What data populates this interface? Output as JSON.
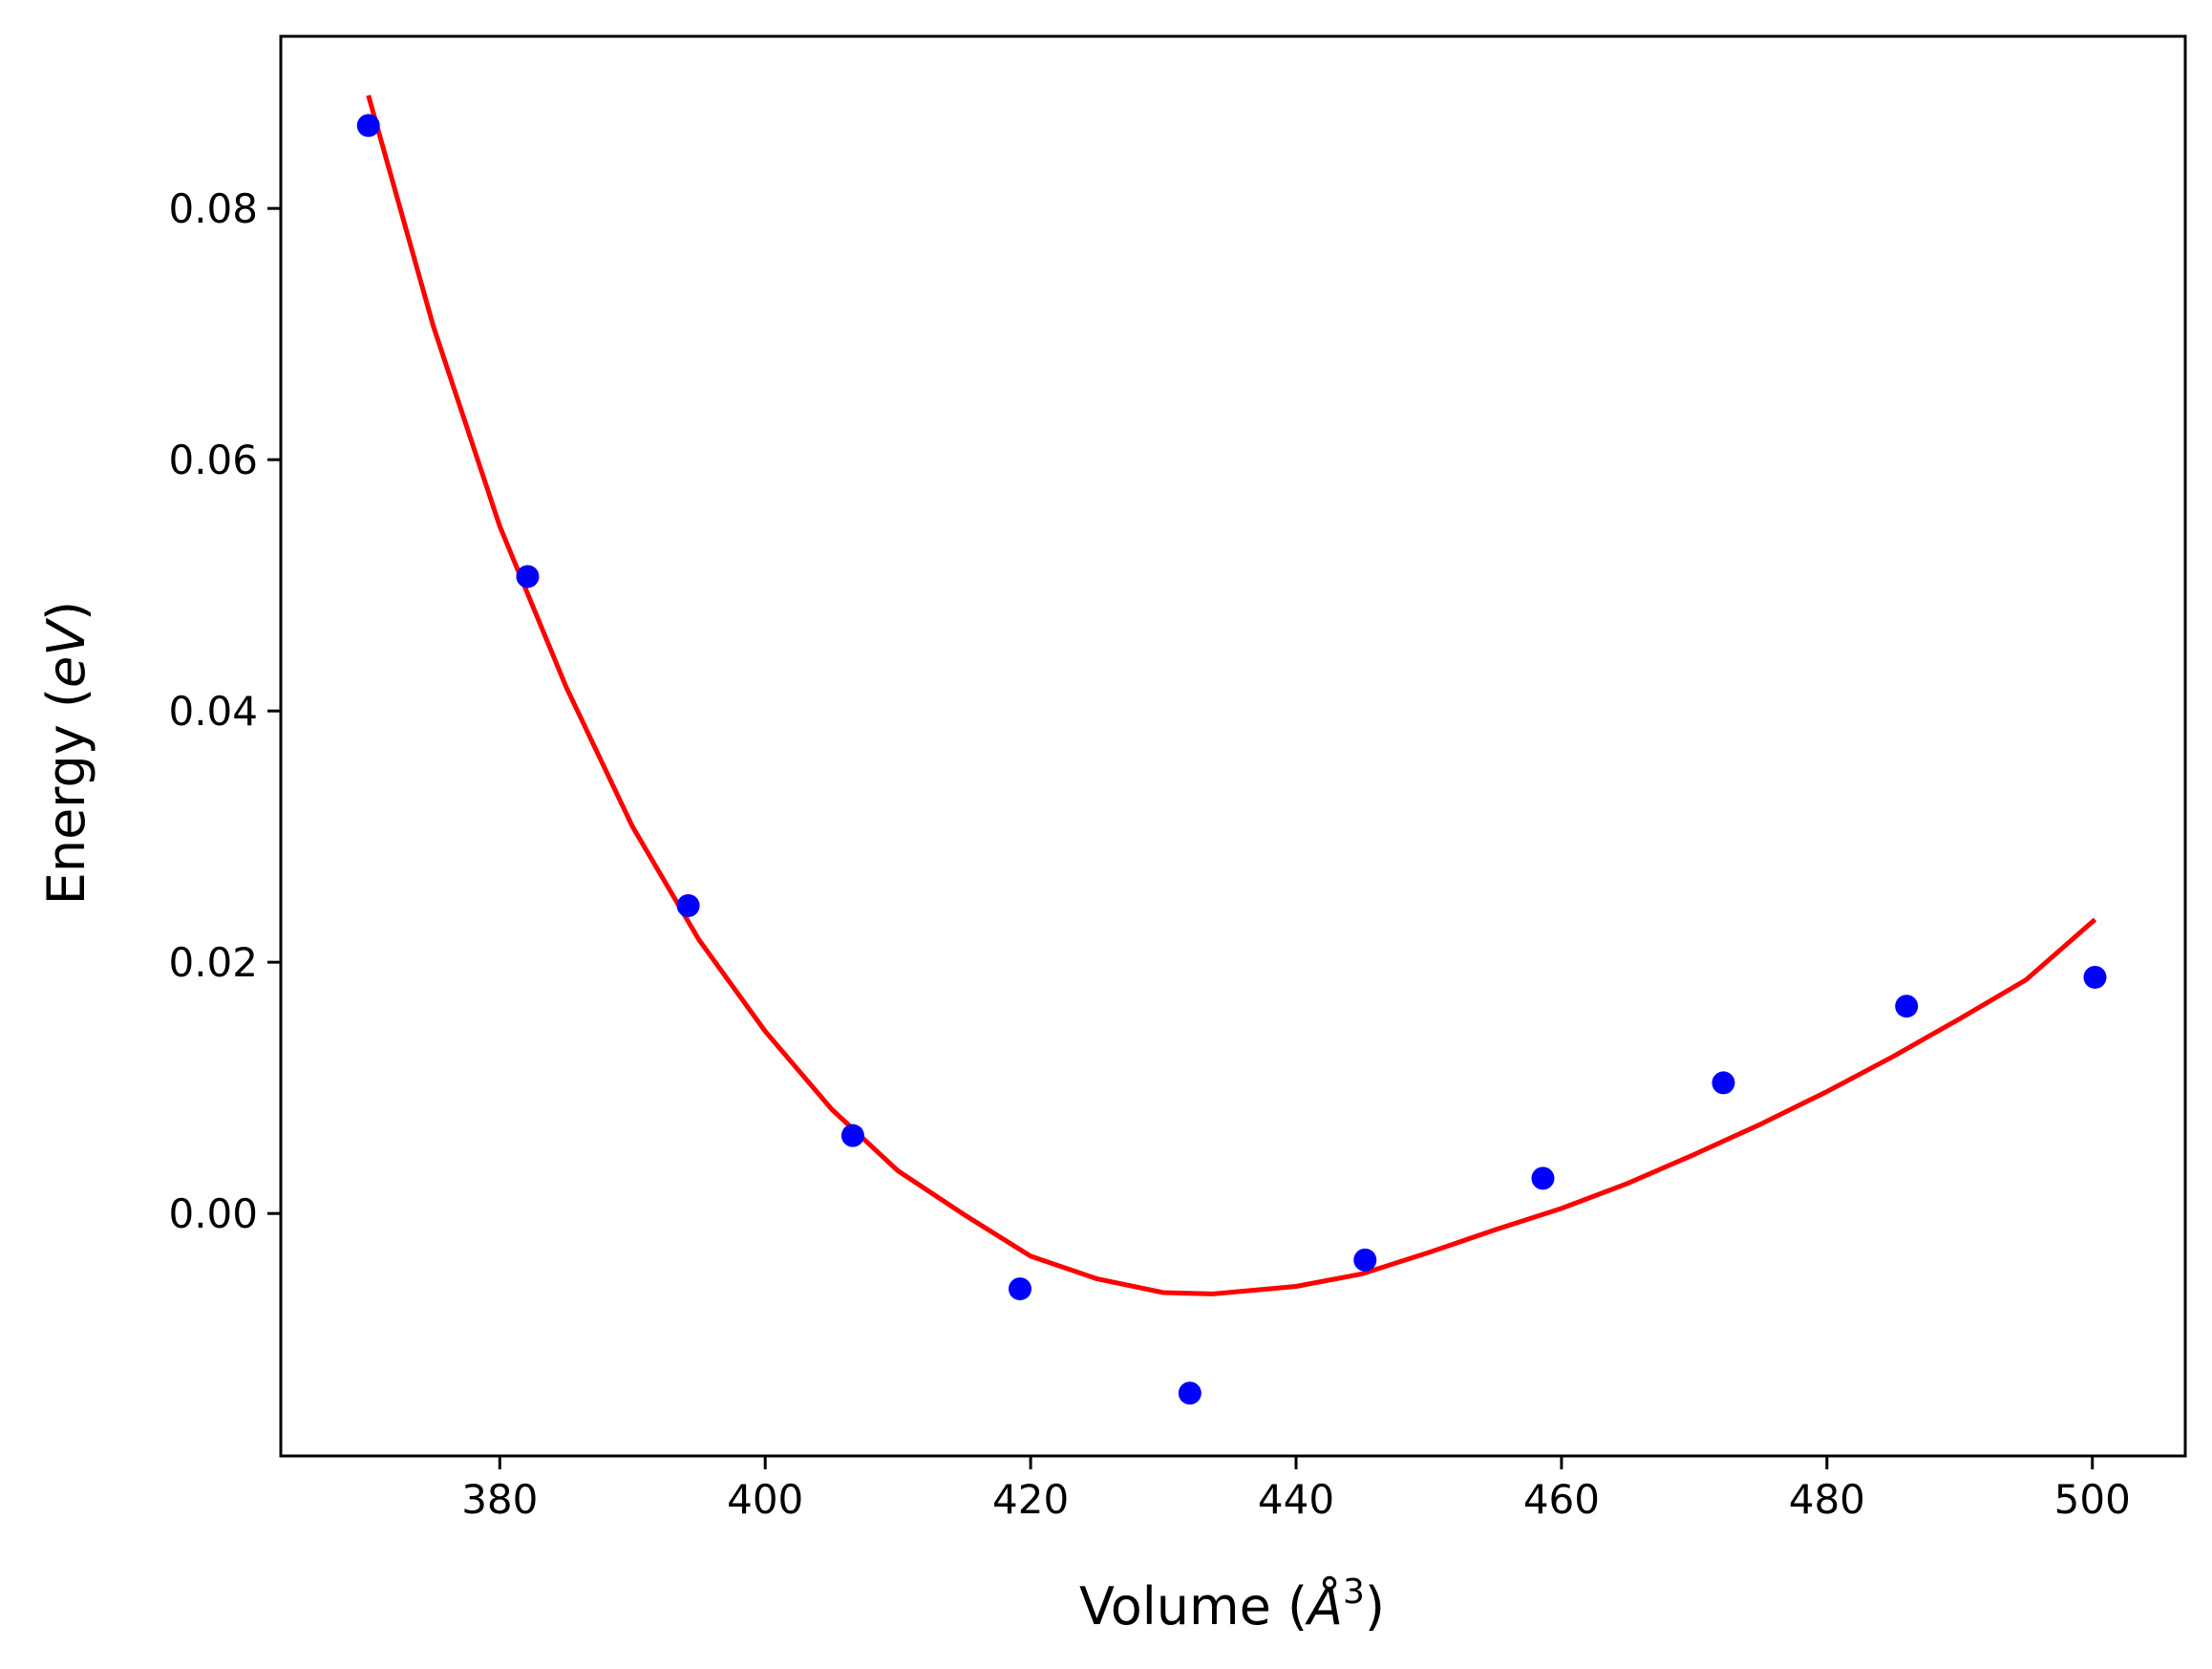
{
  "chart_data": {
    "type": "scatter",
    "xlabel_main": "Volume (",
    "xlabel_unit": "Å",
    "xlabel_exp": "3",
    "xlabel_close": ")",
    "ylabel_main": "Energy (",
    "ylabel_unit": "eV",
    "ylabel_close": ")",
    "xlim": [
      363.5,
      507.0
    ],
    "ylim": [
      -0.0193,
      0.0937
    ],
    "x_ticks": [
      380,
      400,
      420,
      440,
      460,
      480,
      500
    ],
    "x_tick_labels": [
      "380",
      "400",
      "420",
      "440",
      "460",
      "480",
      "500"
    ],
    "y_ticks": [
      0.0,
      0.02,
      0.04,
      0.06,
      0.08
    ],
    "y_tick_labels": [
      "0.00",
      "0.02",
      "0.04",
      "0.06",
      "0.08"
    ],
    "grid": false,
    "series": [
      {
        "kind": "points",
        "color": "#0000ff",
        "x": [
          370.1,
          382.1,
          394.2,
          406.6,
          419.2,
          432.0,
          445.2,
          458.6,
          472.2,
          486.0,
          500.2
        ],
        "y": [
          0.0866,
          0.0507,
          0.0245,
          0.0062,
          -0.006,
          -0.0143,
          -0.0037,
          0.0028,
          0.0104,
          0.0165,
          0.0188
        ]
      },
      {
        "kind": "fit-curve",
        "color": "#ff0000",
        "x": [
          370.1,
          375,
          380,
          385,
          390,
          395,
          400,
          405,
          410,
          415,
          420,
          425,
          430,
          433.7,
          440,
          445,
          450,
          455,
          460,
          465,
          470,
          475,
          480,
          485,
          490,
          495,
          500.2
        ],
        "y": [
          0.089,
          0.0706,
          0.0547,
          0.0419,
          0.0308,
          0.0218,
          0.0145,
          0.0083,
          0.0034,
          -0.0001,
          -0.0034,
          -0.0052,
          -0.0063,
          -0.0064,
          -0.0058,
          -0.0048,
          -0.0031,
          -0.0013,
          0.0004,
          0.0024,
          0.0047,
          0.0071,
          0.0097,
          0.0125,
          0.0155,
          0.0186,
          0.0234
        ]
      }
    ]
  }
}
